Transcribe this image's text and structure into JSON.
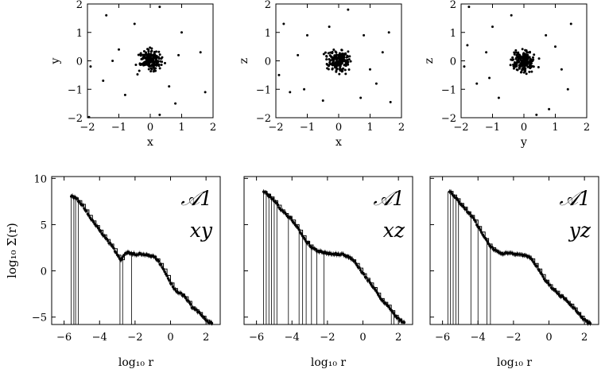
{
  "chart_data": [
    {
      "type": "scatter",
      "panel": "top-1",
      "xlabel": "x",
      "ylabel": "y",
      "xlim": [
        -2,
        2
      ],
      "ylim": [
        -2,
        2
      ],
      "xticks": [
        "−2",
        "−1",
        "0",
        "1",
        "2"
      ],
      "yticks": [
        "−2",
        "−1",
        "0",
        "1",
        "2"
      ],
      "outliers": [
        [
          -1.95,
          -1.98
        ],
        [
          -1.4,
          1.6
        ],
        [
          -1.0,
          0.4
        ],
        [
          -1.9,
          -0.2
        ],
        [
          -0.8,
          -1.2
        ],
        [
          0.3,
          1.9
        ],
        [
          1.0,
          1.0
        ],
        [
          1.75,
          -1.1
        ],
        [
          1.6,
          0.3
        ],
        [
          0.3,
          -1.9
        ],
        [
          -1.2,
          0.0
        ],
        [
          -1.5,
          -0.7
        ],
        [
          0.8,
          -1.5
        ],
        [
          0.9,
          0.2
        ],
        [
          -0.5,
          1.3
        ],
        [
          0.6,
          -0.9
        ]
      ]
    },
    {
      "type": "scatter",
      "panel": "top-2",
      "xlabel": "x",
      "ylabel": "z",
      "xlim": [
        -2,
        2
      ],
      "ylim": [
        -2,
        2
      ],
      "xticks": [
        "−2",
        "−1",
        "0",
        "1",
        "2"
      ],
      "yticks": [
        "−2",
        "−1",
        "0",
        "1",
        "2"
      ],
      "outliers": [
        [
          -1.75,
          1.3
        ],
        [
          -1.9,
          -0.5
        ],
        [
          -1.55,
          -1.1
        ],
        [
          -1.1,
          -1.0
        ],
        [
          -1.0,
          0.9
        ],
        [
          -0.5,
          -1.4
        ],
        [
          0.3,
          1.8
        ],
        [
          0.7,
          -1.3
        ],
        [
          1.0,
          -0.3
        ],
        [
          1.6,
          1.0
        ],
        [
          1.65,
          -1.45
        ],
        [
          1.2,
          -0.8
        ],
        [
          -0.3,
          1.2
        ],
        [
          0.8,
          0.9
        ],
        [
          -1.3,
          0.2
        ],
        [
          1.4,
          0.3
        ]
      ]
    },
    {
      "type": "scatter",
      "panel": "top-3",
      "xlabel": "y",
      "ylabel": "z",
      "xlim": [
        -2,
        2
      ],
      "ylim": [
        -2,
        2
      ],
      "xticks": [
        "−2",
        "−1",
        "0",
        "1",
        "2"
      ],
      "yticks": [
        "−2",
        "−1",
        "0",
        "1",
        "2"
      ],
      "outliers": [
        [
          -1.75,
          1.9
        ],
        [
          -1.9,
          -0.2
        ],
        [
          -1.8,
          0.55
        ],
        [
          -1.5,
          -0.8
        ],
        [
          -1.1,
          -0.6
        ],
        [
          -1.0,
          1.2
        ],
        [
          1.5,
          1.3
        ],
        [
          1.2,
          -0.3
        ],
        [
          1.4,
          -1.0
        ],
        [
          -0.8,
          -1.3
        ],
        [
          0.7,
          0.9
        ],
        [
          0.8,
          -1.7
        ],
        [
          -0.4,
          1.6
        ],
        [
          0.4,
          -1.9
        ],
        [
          1.0,
          0.5
        ],
        [
          -1.2,
          0.3
        ]
      ]
    },
    {
      "type": "line",
      "panel": "bottom-1",
      "xlabel": "log₁₀ r",
      "ylabel": "log₁₀ Σ(r)",
      "xlim": [
        -6.7,
        2.8
      ],
      "ylim": [
        -5.8,
        10.2
      ],
      "xticks": [
        "−6",
        "−4",
        "−2",
        "0",
        "2"
      ],
      "yticks": [
        "−5",
        "0",
        "5",
        "10"
      ],
      "annotation": [
        "𝒜1",
        "xy"
      ],
      "series": [
        {
          "x": [
            -5.6,
            -5.4,
            -5.2,
            -5.0,
            -4.8,
            -4.6,
            -4.4,
            -4.2,
            -4.0,
            -3.8,
            -3.6,
            -3.4,
            -3.2,
            -3.0,
            -2.8,
            -2.6,
            -2.4,
            -2.2,
            -2.0,
            -1.8,
            -1.6,
            -1.4,
            -1.2,
            -1.0,
            -0.8,
            -0.6,
            -0.4,
            -0.2,
            0.0,
            0.2,
            0.4,
            0.6,
            0.8,
            1.0,
            1.2,
            1.4,
            1.6,
            1.8,
            2.0,
            2.2
          ],
          "y": [
            8.1,
            7.9,
            7.6,
            7.2,
            6.6,
            6.0,
            5.4,
            4.9,
            4.4,
            3.9,
            3.4,
            2.9,
            2.4,
            1.7,
            1.2,
            1.8,
            2.0,
            1.9,
            1.8,
            1.8,
            1.8,
            1.8,
            1.7,
            1.6,
            1.3,
            0.8,
            0.2,
            -0.5,
            -1.3,
            -1.9,
            -2.4,
            -2.5,
            -2.8,
            -3.3,
            -3.9,
            -4.2,
            -4.5,
            -4.9,
            -5.3,
            -5.6
          ]
        }
      ],
      "drops": [
        -5.6,
        -5.45,
        -5.35,
        -5.2,
        -2.85,
        -2.7,
        -2.2
      ]
    },
    {
      "type": "line",
      "panel": "bottom-2",
      "xlabel": "log₁₀ r",
      "xlim": [
        -6.7,
        2.8
      ],
      "ylim": [
        -5.8,
        10.2
      ],
      "xticks": [
        "−6",
        "−4",
        "−2",
        "0",
        "2"
      ],
      "annotation": [
        "𝒜1",
        "xz"
      ],
      "series": [
        {
          "x": [
            -5.6,
            -5.4,
            -5.2,
            -5.0,
            -4.8,
            -4.6,
            -4.4,
            -4.2,
            -4.0,
            -3.8,
            -3.6,
            -3.4,
            -3.2,
            -3.0,
            -2.8,
            -2.6,
            -2.4,
            -2.2,
            -2.0,
            -1.8,
            -1.6,
            -1.4,
            -1.2,
            -1.0,
            -0.8,
            -0.6,
            -0.4,
            -0.2,
            0.0,
            0.2,
            0.4,
            0.6,
            0.8,
            1.0,
            1.2,
            1.4,
            1.6,
            1.8,
            2.0,
            2.2
          ],
          "y": [
            8.6,
            8.3,
            8.0,
            7.6,
            7.1,
            6.6,
            6.2,
            5.9,
            5.5,
            5.0,
            4.4,
            3.8,
            3.2,
            2.8,
            2.4,
            2.2,
            2.1,
            2.0,
            1.9,
            1.9,
            1.8,
            1.8,
            1.8,
            1.7,
            1.5,
            1.2,
            0.8,
            0.3,
            -0.3,
            -0.8,
            -1.3,
            -1.8,
            -2.4,
            -3.0,
            -3.4,
            -3.7,
            -4.3,
            -4.8,
            -5.2,
            -5.5
          ]
        }
      ],
      "drops": [
        -5.6,
        -5.45,
        -5.3,
        -5.15,
        -5.0,
        -4.85,
        -4.2,
        -3.6,
        -3.4,
        -3.2,
        -2.9,
        -2.6,
        -2.2,
        1.6,
        1.75
      ]
    },
    {
      "type": "line",
      "panel": "bottom-3",
      "xlabel": "log₁₀ r",
      "xlim": [
        -6.7,
        2.8
      ],
      "ylim": [
        -5.8,
        10.2
      ],
      "xticks": [
        "−6",
        "−4",
        "−2",
        "0",
        "2"
      ],
      "annotation": [
        "𝒜1",
        "yz"
      ],
      "series": [
        {
          "x": [
            -5.6,
            -5.4,
            -5.2,
            -5.0,
            -4.8,
            -4.6,
            -4.4,
            -4.2,
            -4.0,
            -3.8,
            -3.6,
            -3.4,
            -3.2,
            -3.0,
            -2.8,
            -2.6,
            -2.4,
            -2.2,
            -2.0,
            -1.8,
            -1.6,
            -1.4,
            -1.2,
            -1.0,
            -0.8,
            -0.6,
            -0.4,
            -0.2,
            0.0,
            0.2,
            0.4,
            0.6,
            0.8,
            1.0,
            1.2,
            1.4,
            1.6,
            1.8,
            2.0,
            2.2
          ],
          "y": [
            8.6,
            8.2,
            7.8,
            7.3,
            6.9,
            6.4,
            6.0,
            5.5,
            4.8,
            4.2,
            3.5,
            2.9,
            2.5,
            2.2,
            2.0,
            1.9,
            1.9,
            1.9,
            1.9,
            1.8,
            1.8,
            1.7,
            1.6,
            1.3,
            0.8,
            0.2,
            -0.4,
            -1.0,
            -1.5,
            -1.9,
            -2.2,
            -2.6,
            -2.9,
            -3.3,
            -3.6,
            -4.0,
            -4.5,
            -4.9,
            -5.3,
            -5.6
          ]
        }
      ],
      "drops": [
        -5.7,
        -5.55,
        -5.4,
        -5.25,
        -5.1,
        -4.4,
        -4.0,
        -3.5,
        -3.3
      ]
    }
  ]
}
